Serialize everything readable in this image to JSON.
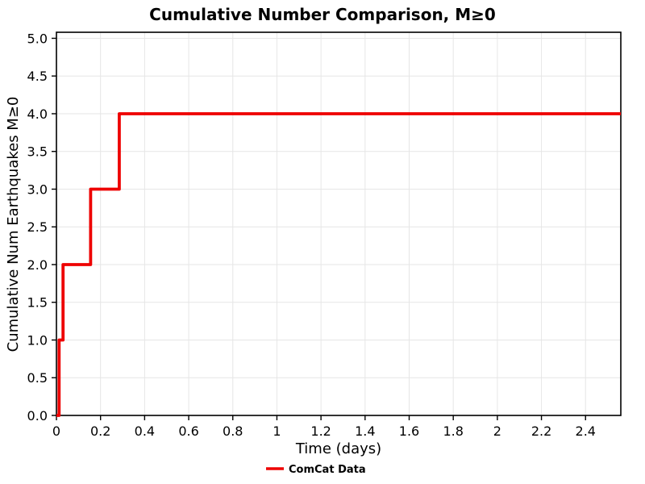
{
  "page": {
    "background": "#ffffff"
  },
  "chart_data": {
    "type": "line",
    "subtype": "step",
    "title": "Cumulative Number Comparison, M≥0",
    "xlabel": "Time (days)",
    "ylabel": "Cumulative Num Earthquakes M≥0",
    "xlim": [
      0,
      2.56
    ],
    "ylim": [
      0,
      5.08
    ],
    "grid": true,
    "grid_color": "#e6e6e6",
    "axis_color": "#000000",
    "xticks": [
      0,
      0.2,
      0.4,
      0.6,
      0.8,
      1,
      1.2,
      1.4,
      1.6,
      1.8,
      2,
      2.2,
      2.4
    ],
    "xtick_labels": [
      "0",
      "0.2",
      "0.4",
      "0.6",
      "0.8",
      "1",
      "1.2",
      "1.4",
      "1.6",
      "1.8",
      "2",
      "2.2",
      "2.4"
    ],
    "yticks": [
      0,
      0.5,
      1,
      1.5,
      2,
      2.5,
      3,
      3.5,
      4,
      4.5,
      5
    ],
    "ytick_labels": [
      "0.0",
      "0.5",
      "1.0",
      "1.5",
      "2.0",
      "2.5",
      "3.0",
      "3.5",
      "4.0",
      "4.5",
      "5.0"
    ],
    "series": [
      {
        "name": "ComCat Data",
        "color": "#ee0000",
        "linewidth": 3.8,
        "points": [
          [
            0,
            0
          ],
          [
            0.012,
            0
          ],
          [
            0.012,
            1
          ],
          [
            0.03,
            1
          ],
          [
            0.03,
            2
          ],
          [
            0.155,
            2
          ],
          [
            0.155,
            3
          ],
          [
            0.285,
            3
          ],
          [
            0.285,
            4
          ],
          [
            2.56,
            4
          ]
        ]
      }
    ],
    "legend": {
      "position": "bottom-center",
      "entries": [
        {
          "label": "ComCat Data",
          "color": "#ee0000"
        }
      ]
    }
  }
}
